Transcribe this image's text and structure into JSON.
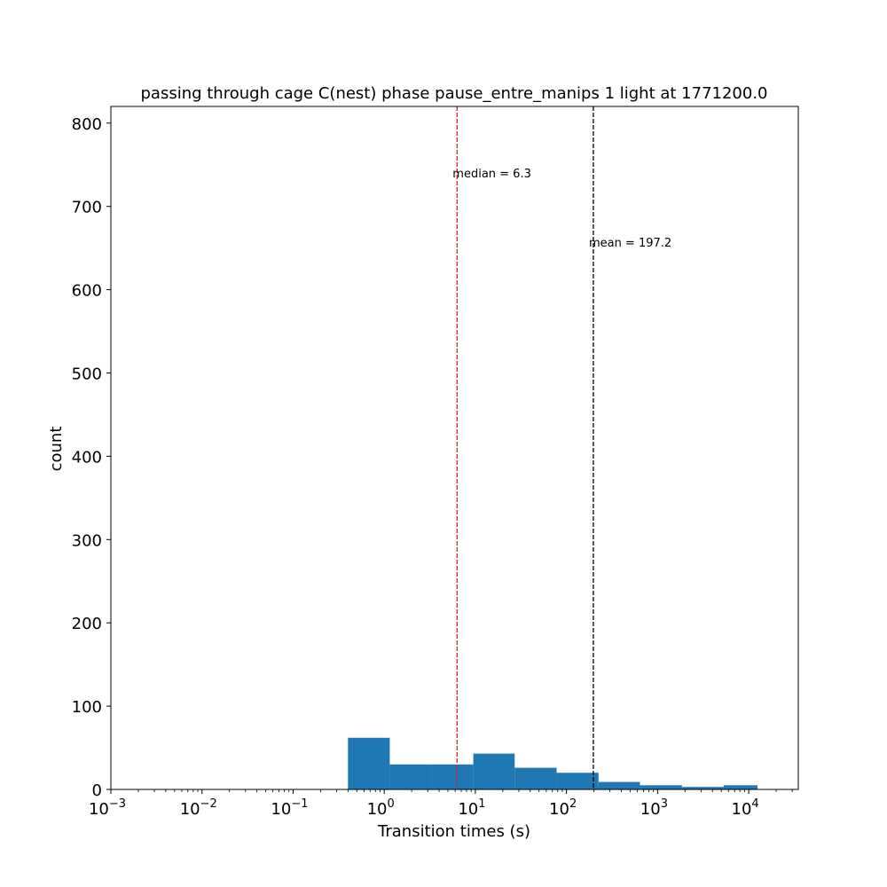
{
  "chart_data": {
    "type": "bar",
    "title": "passing through cage C(nest) phase pause_entre_manips 1 light at 1771200.0",
    "xlabel": "Transition times (s)",
    "ylabel": "count",
    "x_scale": "log",
    "xlim": [
      0.001,
      35000
    ],
    "ylim": [
      0,
      820
    ],
    "grid": false,
    "yticks": [
      0,
      100,
      200,
      300,
      400,
      500,
      600,
      700,
      800
    ],
    "xticks": [
      {
        "value": 0.001,
        "base": "10",
        "exp": "−3"
      },
      {
        "value": 0.01,
        "base": "10",
        "exp": "−2"
      },
      {
        "value": 0.1,
        "base": "10",
        "exp": "−1"
      },
      {
        "value": 1,
        "base": "10",
        "exp": "0"
      },
      {
        "value": 10,
        "base": "10",
        "exp": "1"
      },
      {
        "value": 100,
        "base": "10",
        "exp": "2"
      },
      {
        "value": 1000,
        "base": "10",
        "exp": "3"
      },
      {
        "value": 10000,
        "base": "10",
        "exp": "4"
      }
    ],
    "bin_edges": [
      0.4,
      1.15,
      3.3,
      9.5,
      27,
      78,
      225,
      640,
      1850,
      5300,
      12500
    ],
    "values": [
      62,
      30,
      30,
      43,
      26,
      20,
      9,
      5,
      3,
      5
    ],
    "bar_color": "#1f77b4",
    "lines": [
      {
        "x": 6.3,
        "color": "#d62728",
        "label": "median =  6.3",
        "label_y": 740
      },
      {
        "x": 197.2,
        "color": "#000000",
        "label": "mean = 197.2",
        "label_y": 657
      }
    ]
  }
}
